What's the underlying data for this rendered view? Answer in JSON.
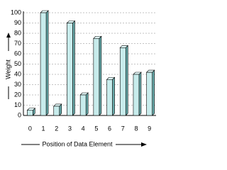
{
  "chart_data": {
    "type": "bar",
    "x_label": "Position of Data Element",
    "y_label": "Weight",
    "categories": [
      "0",
      "1",
      "2",
      "3",
      "4",
      "5",
      "6",
      "7",
      "8",
      "9"
    ],
    "values": [
      5,
      100,
      9,
      90,
      20,
      75,
      35,
      66,
      40,
      42
    ],
    "color": "#c8ecec",
    "ylim": [
      0,
      100
    ],
    "yticks": [
      0,
      10,
      20,
      30,
      40,
      50,
      60,
      70,
      80,
      90,
      100
    ],
    "grid": true
  }
}
